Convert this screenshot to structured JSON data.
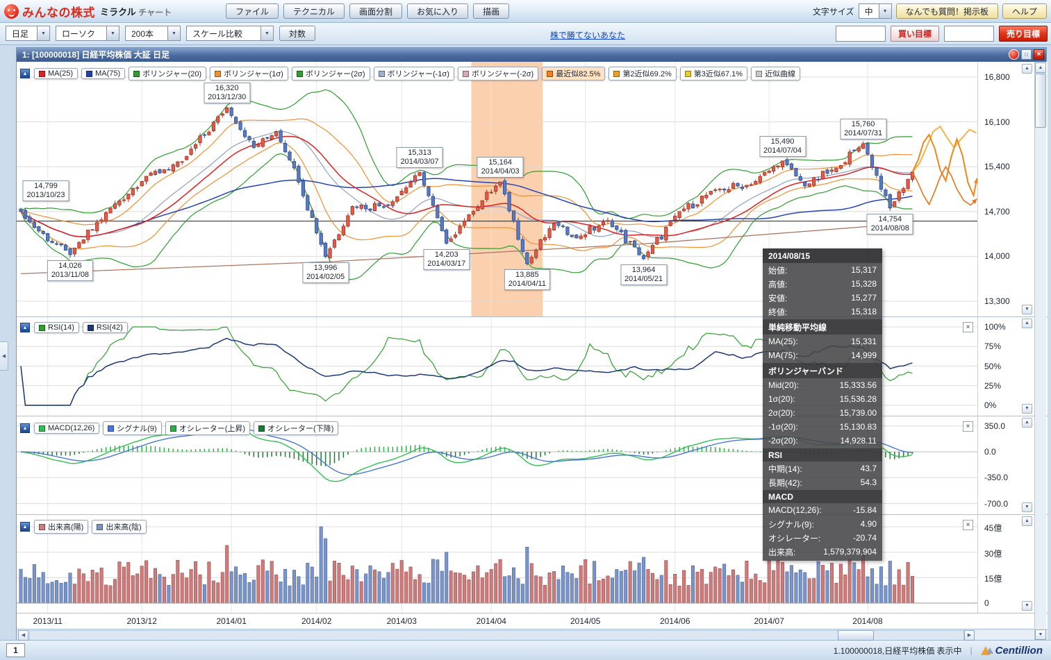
{
  "icons": {
    "dropdown": "▼",
    "collapse": "▲",
    "close": "×",
    "up": "▲",
    "down": "▼",
    "left": "◀",
    "right": "▶",
    "window_min": "□",
    "separator": "|",
    "side_toggle": "◀"
  },
  "header": {
    "logo": {
      "brand": "みんなの株式",
      "product_main": "ミラクル",
      "product_sub": "チャート"
    },
    "menu_buttons": [
      "ファイル",
      "テクニカル",
      "画面分割",
      "お気に入り",
      "描画"
    ],
    "font_size": {
      "label": "文字サイズ",
      "value": "中"
    },
    "qa_button": "なんでも質問！掲示板",
    "help_button": "ヘルプ"
  },
  "toolbar": {
    "period": "日足",
    "style": "ローソク",
    "bars": "200本",
    "scale": "スケール比較",
    "log": "対数",
    "ad_link": "株で勝てないあなた",
    "buy_target": "買い目標",
    "sell_target": "売り目標"
  },
  "window": {
    "title": "1:  [100000018] 日経平均株価 大証 日足"
  },
  "panels": {
    "price": {
      "chips": [
        {
          "label": "MA(25)",
          "sq": "#e02020"
        },
        {
          "label": "MA(75)",
          "sq": "#2342b4"
        },
        {
          "label": "ボリンジャー(20)",
          "sq": "#2e9e2e"
        },
        {
          "label": "ボリンジャー(1σ)",
          "sq": "#f09030"
        },
        {
          "label": "ボリンジャー(2σ)",
          "sq": "#2e9e2e"
        },
        {
          "label": "ボリンジャー(-1σ)",
          "sq": "#9ab0cc"
        },
        {
          "label": "ボリンジャー(-2σ)",
          "sq": "#d8a8b8"
        },
        {
          "label": "最近似82.5%",
          "sq": "#f08020",
          "bg": "#ffe3c4"
        },
        {
          "label": "第2近似69.2%",
          "sq": "#f0a020"
        },
        {
          "label": "第3近似67.1%",
          "sq": "#e8cc30"
        },
        {
          "label": "近似曲線",
          "sq": "#c8c8c8"
        }
      ],
      "y_ticks": [
        {
          "label": "16,800",
          "value": 16800
        },
        {
          "label": "16,100",
          "value": 16100
        },
        {
          "label": "15,400",
          "value": 15400
        },
        {
          "label": "14,700",
          "value": 14700
        },
        {
          "label": "14,000",
          "value": 14000
        },
        {
          "label": "13,300",
          "value": 13300
        }
      ],
      "annotations": [
        {
          "price": "14,799",
          "date": "2013/10/23",
          "idx": 0,
          "value": 14799,
          "side": "above"
        },
        {
          "price": "14,026",
          "date": "2013/11/08",
          "idx": 11,
          "value": 14026,
          "side": "below"
        },
        {
          "price": "16,320",
          "date": "2013/12/30",
          "idx": 46,
          "value": 16320,
          "side": "above"
        },
        {
          "price": "13,996",
          "date": "2014/02/05",
          "idx": 68,
          "value": 13996,
          "side": "below"
        },
        {
          "price": "15,313",
          "date": "2014/03/07",
          "idx": 89,
          "value": 15313,
          "side": "above"
        },
        {
          "price": "14,203",
          "date": "2014/03/17",
          "idx": 95,
          "value": 14203,
          "side": "below"
        },
        {
          "price": "15,164",
          "date": "2014/04/03",
          "idx": 107,
          "value": 15164,
          "side": "above"
        },
        {
          "price": "13,885",
          "date": "2014/04/11",
          "idx": 113,
          "value": 13885,
          "side": "below"
        },
        {
          "price": "13,964",
          "date": "2014/05/21",
          "idx": 139,
          "value": 13964,
          "side": "below"
        },
        {
          "price": "15,490",
          "date": "2014/07/04",
          "idx": 170,
          "value": 15490,
          "side": "above"
        },
        {
          "price": "15,760",
          "date": "2014/07/31",
          "idx": 188,
          "value": 15760,
          "side": "above"
        },
        {
          "price": "14,754",
          "date": "2014/08/08",
          "idx": 194,
          "value": 14754,
          "side": "below"
        }
      ]
    },
    "rsi": {
      "chips": [
        {
          "label": "RSI(14)",
          "sq": "#2ea02e"
        },
        {
          "label": "RSI(42)",
          "sq": "#1c3878"
        }
      ],
      "y_ticks": [
        {
          "label": "100%",
          "value": 100
        },
        {
          "label": "75%",
          "value": 75
        },
        {
          "label": "50%",
          "value": 50
        },
        {
          "label": "25%",
          "value": 25
        },
        {
          "label": "0%",
          "value": 0
        }
      ]
    },
    "macd": {
      "chips": [
        {
          "label": "MACD(12,26)",
          "sq": "#2fc050"
        },
        {
          "label": "シグナル(9)",
          "sq": "#4878d8"
        },
        {
          "label": "オシレーター(上昇)",
          "sq": "#2fae4a"
        },
        {
          "label": "オシレーター(下降)",
          "sq": "#1d7c34"
        }
      ],
      "y_ticks": [
        {
          "label": "350.0",
          "value": 350
        },
        {
          "label": "0.0",
          "value": 0
        },
        {
          "label": "-350.0",
          "value": -350
        },
        {
          "label": "-700.0",
          "value": -700
        }
      ]
    },
    "volume": {
      "chips": [
        {
          "label": "出来高(陽)",
          "sq": "#cd7b7b"
        },
        {
          "label": "出来高(陰)",
          "sq": "#7b95c8"
        }
      ],
      "y_ticks": [
        {
          "label": "45億",
          "value": 45
        },
        {
          "label": "30億",
          "value": 30
        },
        {
          "label": "15億",
          "value": 15
        },
        {
          "label": "0",
          "value": 0
        }
      ]
    }
  },
  "tooltip": {
    "date": "2014/08/15",
    "sections": [
      {
        "header": null,
        "rows": [
          [
            "始値:",
            "15,317"
          ],
          [
            "高値:",
            "15,328"
          ],
          [
            "安値:",
            "15,277"
          ],
          [
            "終値:",
            "15,318"
          ]
        ]
      },
      {
        "header": "単純移動平均線",
        "rows": [
          [
            "MA(25):",
            "15,331"
          ],
          [
            "MA(75):",
            "14,999"
          ]
        ]
      },
      {
        "header": "ボリンジャーバンド",
        "rows": [
          [
            "Mid(20):",
            "15,333.56"
          ],
          [
            "1σ(20):",
            "15,536.28"
          ],
          [
            "2σ(20):",
            "15,739.00"
          ],
          [
            "-1σ(20):",
            "15,130.83"
          ],
          [
            "-2σ(20):",
            "14,928.11"
          ]
        ]
      },
      {
        "header": "RSI",
        "rows": [
          [
            "中期(14):",
            "43.7"
          ],
          [
            "長期(42):",
            "54.3"
          ]
        ]
      },
      {
        "header": "MACD",
        "rows": [
          [
            "MACD(12,26):",
            "-15.84"
          ],
          [
            "シグナル(9):",
            "4.90"
          ],
          [
            "オシレーター:",
            "-20.74"
          ],
          [
            "出来高:",
            "1,579,379,904"
          ]
        ]
      }
    ]
  },
  "x_axis": {
    "labels": [
      {
        "text": "2013/11",
        "idx": 6
      },
      {
        "text": "2013/12",
        "idx": 27
      },
      {
        "text": "2014/01",
        "idx": 47
      },
      {
        "text": "2014/02",
        "idx": 66
      },
      {
        "text": "2014/03",
        "idx": 85
      },
      {
        "text": "2014/04",
        "idx": 105
      },
      {
        "text": "2014/05",
        "idx": 126
      },
      {
        "text": "2014/06",
        "idx": 146
      },
      {
        "text": "2014/07",
        "idx": 167
      },
      {
        "text": "2014/08",
        "idx": 189
      }
    ]
  },
  "status_bar": {
    "tab": "1",
    "message": "1.100000018,日経平均株価 表示中",
    "separator": "|",
    "brand": "Centillion"
  },
  "chart_data": {
    "type": "candlestick",
    "symbol": "日経平均株価",
    "exchange": "大証",
    "timeframe": "日足",
    "bars": 200,
    "date_range": [
      "2013/10/23",
      "2014/08/15"
    ],
    "price_axis": {
      "min": 13300,
      "max": 16800,
      "ticks": [
        16800,
        16100,
        15400,
        14700,
        14000,
        13300
      ]
    },
    "rsi_axis": {
      "min": 0,
      "max": 100,
      "ticks": [
        100,
        75,
        50,
        25,
        0
      ]
    },
    "macd_axis": {
      "min": -700,
      "max": 350,
      "ticks": [
        350,
        0,
        -350,
        -700
      ]
    },
    "volume_axis_oku": {
      "min": 0,
      "max": 45,
      "ticks": [
        45,
        30,
        15,
        0
      ]
    },
    "key_points": [
      {
        "date": "2013/10/23",
        "price": 14799
      },
      {
        "date": "2013/11/08",
        "price": 14026
      },
      {
        "date": "2013/12/30",
        "price": 16320
      },
      {
        "date": "2014/02/05",
        "price": 13996
      },
      {
        "date": "2014/03/07",
        "price": 15313
      },
      {
        "date": "2014/03/17",
        "price": 14203
      },
      {
        "date": "2014/04/03",
        "price": 15164
      },
      {
        "date": "2014/04/11",
        "price": 13885
      },
      {
        "date": "2014/05/21",
        "price": 13964
      },
      {
        "date": "2014/07/04",
        "price": 15490
      },
      {
        "date": "2014/07/31",
        "price": 15760
      },
      {
        "date": "2014/08/08",
        "price": 14754
      }
    ],
    "last_bar": {
      "date": "2014/08/15",
      "open": 15317,
      "high": 15328,
      "low": 15277,
      "close": 15318,
      "volume": 1579379904
    },
    "indicator_values": {
      "ma25": 15331,
      "ma75": 14999,
      "boll_mid20": 15333.56,
      "boll_p1s": 15536.28,
      "boll_p2s": 15739.0,
      "boll_m1s": 15130.83,
      "boll_m2s": 14928.11,
      "rsi14": 43.7,
      "rsi42": 54.3,
      "macd": -15.84,
      "signal": 4.9,
      "oscillator": -20.74
    },
    "month_idx": [
      6,
      27,
      47,
      66,
      85,
      105,
      126,
      146,
      167,
      189
    ],
    "anchors": [
      [
        0,
        14700
      ],
      [
        3,
        14450
      ],
      [
        11,
        14026
      ],
      [
        20,
        14750
      ],
      [
        28,
        15250
      ],
      [
        36,
        15480
      ],
      [
        46,
        16320
      ],
      [
        52,
        15700
      ],
      [
        57,
        15950
      ],
      [
        61,
        15380
      ],
      [
        68,
        13996
      ],
      [
        74,
        14780
      ],
      [
        82,
        14800
      ],
      [
        89,
        15313
      ],
      [
        95,
        14203
      ],
      [
        100,
        14650
      ],
      [
        107,
        15164
      ],
      [
        113,
        13885
      ],
      [
        119,
        14512
      ],
      [
        124,
        14288
      ],
      [
        131,
        14560
      ],
      [
        139,
        13964
      ],
      [
        147,
        14700
      ],
      [
        155,
        15040
      ],
      [
        163,
        15120
      ],
      [
        170,
        15490
      ],
      [
        175,
        15100
      ],
      [
        182,
        15380
      ],
      [
        188,
        15760
      ],
      [
        194,
        14754
      ],
      [
        199,
        15318
      ]
    ],
    "trend_anchors": [
      [
        0,
        13730
      ],
      [
        70,
        13920
      ],
      [
        140,
        14200
      ],
      [
        199,
        14520
      ]
    ],
    "highlight_band": {
      "from_idx": 101,
      "to_idx": 116
    },
    "drawn_hline": 14550,
    "volume_spikes": [
      [
        46,
        34
      ],
      [
        67,
        45
      ],
      [
        68,
        38
      ],
      [
        95,
        30
      ],
      [
        113,
        33
      ],
      [
        139,
        27
      ],
      [
        188,
        29
      ],
      [
        199,
        15.8
      ]
    ],
    "forecast": [
      {
        "color": "#f7b24a",
        "width": 2,
        "arrow": false,
        "points": [
          [
            0,
            15318
          ],
          [
            10,
            15450
          ],
          [
            20,
            15700
          ],
          [
            30,
            15950
          ],
          [
            40,
            16030
          ],
          [
            50,
            15850
          ],
          [
            60,
            15700
          ],
          [
            70,
            15830
          ],
          [
            82,
            15980
          ],
          [
            92,
            15930
          ]
        ]
      },
      {
        "color": "#f08518",
        "width": 2,
        "arrow": true,
        "points": [
          [
            0,
            15318
          ],
          [
            8,
            15500
          ],
          [
            16,
            15780
          ],
          [
            24,
            15900
          ],
          [
            32,
            15690
          ],
          [
            40,
            15350
          ],
          [
            48,
            15180
          ],
          [
            56,
            15560
          ],
          [
            64,
            15830
          ],
          [
            72,
            15580
          ],
          [
            80,
            15150
          ],
          [
            88,
            14950
          ],
          [
            93,
            15220
          ]
        ]
      },
      {
        "color": "#e8731a",
        "width": 1.6,
        "arrow": true,
        "points": [
          [
            0,
            15318
          ],
          [
            8,
            15150
          ],
          [
            16,
            14950
          ],
          [
            24,
            14810
          ],
          [
            32,
            15010
          ],
          [
            40,
            15240
          ],
          [
            48,
            15400
          ],
          [
            56,
            15260
          ],
          [
            64,
            15050
          ],
          [
            74,
            14870
          ],
          [
            84,
            14800
          ],
          [
            93,
            14900
          ]
        ]
      }
    ],
    "colors": {
      "up": "#e25c4a",
      "up_border": "#a23020",
      "down": "#5b79bd",
      "down_border": "#2e4c8e",
      "band": "#f6a96e",
      "grid": "#dcdcdc",
      "month_grid": "#e6e6e6",
      "drawn": "#222222",
      "ma25": "#e02020",
      "ma75": "#2342b4",
      "boll2": "#2e9e2e",
      "boll1": "#f09030",
      "mid": "#90a0c0",
      "trend": "#a87058",
      "rsi14": "#2ea02e",
      "rsi42": "#1c3878",
      "macd_line": "#2fc050",
      "signal": "#4878d8",
      "hist_up": "#2fae4a",
      "hist_dn": "#1d7c34",
      "vol_up": "#cd7b7b",
      "vol_up_border": "#9e4848",
      "vol_dn": "#7b95c8",
      "vol_dn_border": "#46629e"
    }
  }
}
